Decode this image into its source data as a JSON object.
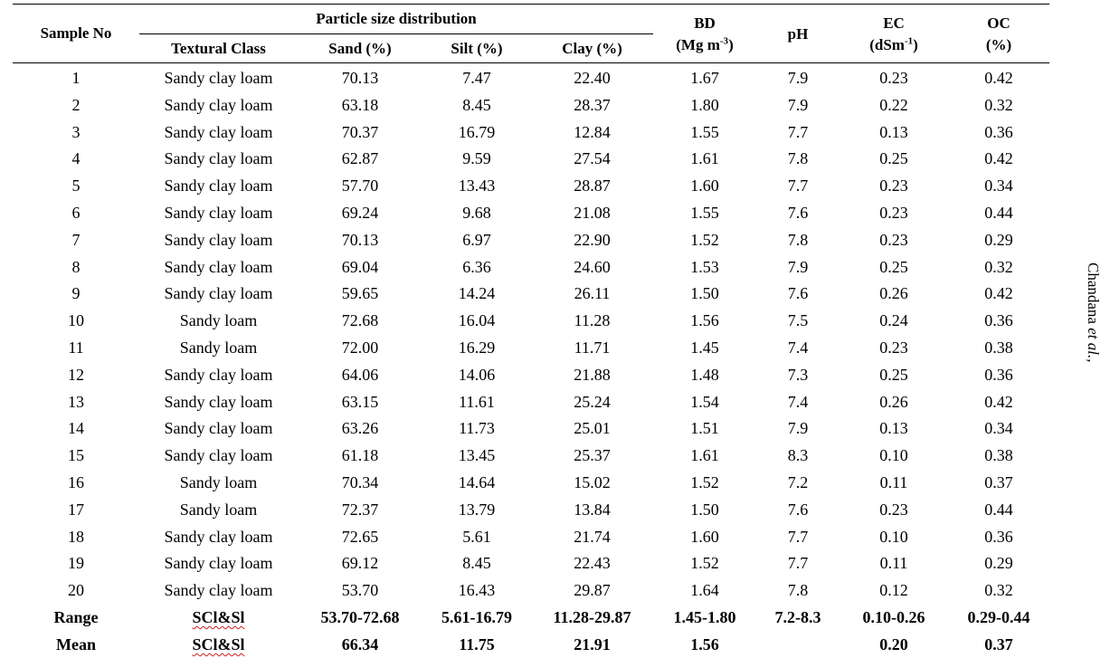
{
  "table": {
    "headers": {
      "sample_no": "Sample No",
      "psd_group": "Particle size distribution",
      "textural_class": "Textural Class",
      "sand": "Sand (%)",
      "silt": "Silt (%)",
      "clay": "Clay (%)",
      "bd_line1": "BD",
      "bd_line2_base": "(Mg m",
      "bd_line2_sup": "-3",
      "bd_line2_end": ")",
      "ph": "pH",
      "ec_line1": "EC",
      "ec_line2_base": "(dSm",
      "ec_line2_sup": "-1",
      "ec_line2_end": ")",
      "oc_line1": "OC",
      "oc_line2": "(%)"
    },
    "rows": [
      [
        "1",
        "Sandy clay loam",
        "70.13",
        "7.47",
        "22.40",
        "1.67",
        "7.9",
        "0.23",
        "0.42"
      ],
      [
        "2",
        "Sandy clay loam",
        "63.18",
        "8.45",
        "28.37",
        "1.80",
        "7.9",
        "0.22",
        "0.32"
      ],
      [
        "3",
        "Sandy clay loam",
        "70.37",
        "16.79",
        "12.84",
        "1.55",
        "7.7",
        "0.13",
        "0.36"
      ],
      [
        "4",
        "Sandy clay loam",
        "62.87",
        "9.59",
        "27.54",
        "1.61",
        "7.8",
        "0.25",
        "0.42"
      ],
      [
        "5",
        "Sandy clay loam",
        "57.70",
        "13.43",
        "28.87",
        "1.60",
        "7.7",
        "0.23",
        "0.34"
      ],
      [
        "6",
        "Sandy clay loam",
        "69.24",
        "9.68",
        "21.08",
        "1.55",
        "7.6",
        "0.23",
        "0.44"
      ],
      [
        "7",
        "Sandy clay loam",
        "70.13",
        "6.97",
        "22.90",
        "1.52",
        "7.8",
        "0.23",
        "0.29"
      ],
      [
        "8",
        "Sandy clay loam",
        "69.04",
        "6.36",
        "24.60",
        "1.53",
        "7.9",
        "0.25",
        "0.32"
      ],
      [
        "9",
        "Sandy clay loam",
        "59.65",
        "14.24",
        "26.11",
        "1.50",
        "7.6",
        "0.26",
        "0.42"
      ],
      [
        "10",
        "Sandy loam",
        "72.68",
        "16.04",
        "11.28",
        "1.56",
        "7.5",
        "0.24",
        "0.36"
      ],
      [
        "11",
        "Sandy loam",
        "72.00",
        "16.29",
        "11.71",
        "1.45",
        "7.4",
        "0.23",
        "0.38"
      ],
      [
        "12",
        "Sandy clay loam",
        "64.06",
        "14.06",
        "21.88",
        "1.48",
        "7.3",
        "0.25",
        "0.36"
      ],
      [
        "13",
        "Sandy clay loam",
        "63.15",
        "11.61",
        "25.24",
        "1.54",
        "7.4",
        "0.26",
        "0.42"
      ],
      [
        "14",
        "Sandy clay loam",
        "63.26",
        "11.73",
        "25.01",
        "1.51",
        "7.9",
        "0.13",
        "0.34"
      ],
      [
        "15",
        "Sandy clay loam",
        "61.18",
        "13.45",
        "25.37",
        "1.61",
        "8.3",
        "0.10",
        "0.38"
      ],
      [
        "16",
        "Sandy loam",
        "70.34",
        "14.64",
        "15.02",
        "1.52",
        "7.2",
        "0.11",
        "0.37"
      ],
      [
        "17",
        "Sandy loam",
        "72.37",
        "13.79",
        "13.84",
        "1.50",
        "7.6",
        "0.23",
        "0.44"
      ],
      [
        "18",
        "Sandy clay loam",
        "72.65",
        "5.61",
        "21.74",
        "1.60",
        "7.7",
        "0.10",
        "0.36"
      ],
      [
        "19",
        "Sandy clay loam",
        "69.12",
        "8.45",
        "22.43",
        "1.52",
        "7.7",
        "0.11",
        "0.29"
      ],
      [
        "20",
        "Sandy clay loam",
        "53.70",
        "16.43",
        "29.87",
        "1.64",
        "7.8",
        "0.12",
        "0.32"
      ]
    ],
    "summary": [
      [
        "Range",
        "SCl&Sl",
        "53.70-72.68",
        "5.61-16.79",
        "11.28-29.87",
        "1.45-1.80",
        "7.2-8.3",
        "0.10-0.26",
        "0.29-0.44"
      ],
      [
        "Mean",
        "SCl&Sl",
        "66.34",
        "11.75",
        "21.91",
        "1.56",
        "",
        "0.20",
        "0.37"
      ]
    ]
  },
  "side_note": {
    "author": "Chandana",
    "suffix": "et al.,"
  }
}
